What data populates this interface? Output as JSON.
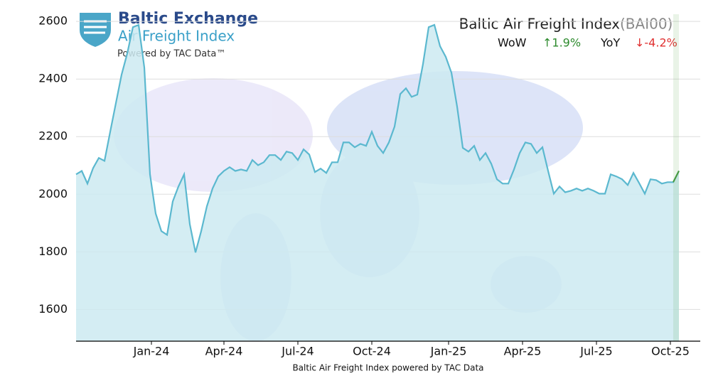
{
  "chart_data": {
    "type": "line",
    "logo": {
      "title": "Baltic Exchange",
      "subtitle": "Air Freight Index",
      "powered": "Powered by TAC Data™"
    },
    "title": "Baltic Air Freight Index",
    "code": "(BAI00)",
    "wow": {
      "label": "WoW",
      "change": "↑1.9%"
    },
    "yoy": {
      "label": "YoY",
      "change": "↓-4.2%"
    },
    "xlabel": "Baltic Air Freight Index powered by TAC Data",
    "series": [
      {
        "name": "BAI00",
        "color": "#5bb8cf",
        "fill": "#cdeaf1",
        "latest_color": "#4a9a3a",
        "values": [
          2069,
          2081,
          2037,
          2091,
          2126,
          2116,
          2217,
          2316,
          2415,
          2489,
          2580,
          2588,
          2440,
          2069,
          1933,
          1872,
          1859,
          1975,
          2027,
          2069,
          1896,
          1798,
          1872,
          1958,
          2020,
          2062,
          2081,
          2094,
          2081,
          2086,
          2081,
          2119,
          2101,
          2111,
          2136,
          2136,
          2119,
          2148,
          2143,
          2119,
          2156,
          2138,
          2077,
          2089,
          2074,
          2111,
          2111,
          2180,
          2180,
          2163,
          2175,
          2168,
          2217,
          2168,
          2143,
          2180,
          2235,
          2348,
          2368,
          2338,
          2346,
          2452,
          2580,
          2588,
          2514,
          2477,
          2422,
          2304,
          2161,
          2148,
          2168,
          2119,
          2143,
          2106,
          2052,
          2037,
          2037,
          2086,
          2143,
          2180,
          2175,
          2143,
          2163,
          2081,
          2002,
          2027,
          2007,
          2012,
          2020,
          2012,
          2020,
          2012,
          2002,
          2002,
          2069,
          2062,
          2052,
          2032,
          2074,
          2039,
          2002,
          2052,
          2049,
          2037,
          2042,
          2042,
          2081
        ]
      }
    ],
    "xlim": [
      0,
      109.75
    ],
    "xticks": [
      {
        "value": 13.25,
        "label": "Jan-24"
      },
      {
        "value": 26,
        "label": "Apr-24"
      },
      {
        "value": 39,
        "label": "Jul-24"
      },
      {
        "value": 52,
        "label": "Oct-24"
      },
      {
        "value": 65.5,
        "label": "Jan-25"
      },
      {
        "value": 78.5,
        "label": "Apr-25"
      },
      {
        "value": 91.5,
        "label": "Jul-25"
      },
      {
        "value": 104.5,
        "label": "Oct-25"
      }
    ],
    "ylim": [
      1490,
      2625
    ],
    "yticks": [
      1600,
      1800,
      2000,
      2200,
      2400,
      2600
    ],
    "grid": true
  }
}
